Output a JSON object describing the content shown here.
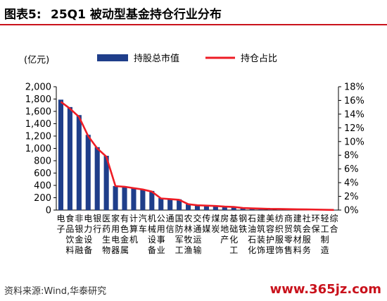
{
  "figure": {
    "number": "图表5:",
    "title": "25Q1 被动型基金持仓行业分布"
  },
  "source_note": "资料来源:Wind,华泰研究",
  "watermark": "www.365jz.com",
  "chart_data": {
    "type": "bar",
    "unit_label": "(亿元)",
    "legend": [
      "持股总市值",
      "持仓占比"
    ],
    "legend_position": "top",
    "categories": [
      "电子",
      "食品饮料",
      "非银金融",
      "电力设备",
      "银行",
      "医药生物",
      "家用电器",
      "有色金属",
      "计算机",
      "汽车",
      "机械设备",
      "公用事业",
      "通信",
      "国防军工",
      "农林牧渔",
      "交通运输",
      "传媒",
      "煤炭",
      "房地产",
      "基础化工",
      "钢铁",
      "石油石化",
      "建筑装饰",
      "美容护理",
      "纺织服饰",
      "商贸零售",
      "建筑材料",
      "社会服务",
      "环保",
      "轻工制造",
      "综合"
    ],
    "category_labels": [
      [
        "电",
        "子"
      ],
      [
        "食",
        "品",
        "饮",
        "料"
      ],
      [
        "非",
        "银",
        "金",
        "融"
      ],
      [
        "电",
        "力",
        "设",
        "备"
      ],
      [
        "银",
        "行"
      ],
      [
        "医",
        "药",
        "生",
        "物"
      ],
      [
        "家",
        "用",
        "电",
        "器"
      ],
      [
        "有",
        "色",
        "金",
        "属"
      ],
      [
        "计",
        "算",
        "机"
      ],
      [
        "汽",
        "车"
      ],
      [
        "机",
        "械",
        "设",
        "备"
      ],
      [
        "公",
        "用",
        "事",
        "业"
      ],
      [
        "通",
        "信"
      ],
      [
        "国",
        "防",
        "军",
        "工"
      ],
      [
        "农",
        "林",
        "牧",
        "渔"
      ],
      [
        "交",
        "通",
        "运",
        "输"
      ],
      [
        "传",
        "媒"
      ],
      [
        "煤",
        "炭"
      ],
      [
        "房",
        "地",
        "产"
      ],
      [
        "基",
        "础",
        "化",
        "工"
      ],
      [
        "钢",
        "铁"
      ],
      [
        "石",
        "油",
        "石",
        "化"
      ],
      [
        "建",
        "筑",
        "装",
        "饰"
      ],
      [
        "美",
        "容",
        "护",
        "理"
      ],
      [
        "纺",
        "织",
        "服",
        "饰"
      ],
      [
        "商",
        "贸",
        "零",
        "售"
      ],
      [
        "建",
        "筑",
        "材",
        "料"
      ],
      [
        "社",
        "会",
        "服",
        "务"
      ],
      [
        "环",
        "保"
      ],
      [
        "轻",
        "工",
        "制",
        "造"
      ],
      [
        "综",
        "合"
      ]
    ],
    "series": [
      {
        "name": "持股总市值",
        "axis": "left",
        "kind": "bar",
        "color": "#1f3e8a",
        "values": [
          1790,
          1670,
          1540,
          1220,
          1020,
          880,
          390,
          380,
          365,
          335,
          310,
          195,
          185,
          175,
          95,
          80,
          75,
          70,
          55,
          50,
          35,
          30,
          25,
          20,
          18,
          15,
          12,
          10,
          8,
          5,
          2
        ]
      },
      {
        "name": "持仓占比",
        "axis": "right",
        "kind": "line",
        "color": "#ee1c25",
        "values": [
          15.8,
          14.8,
          13.6,
          10.8,
          9.0,
          7.8,
          3.5,
          3.4,
          3.2,
          3.0,
          2.7,
          1.7,
          1.6,
          1.5,
          0.85,
          0.7,
          0.65,
          0.6,
          0.5,
          0.45,
          0.3,
          0.25,
          0.22,
          0.18,
          0.16,
          0.13,
          0.11,
          0.09,
          0.07,
          0.04,
          0.02
        ]
      }
    ],
    "y_left": {
      "min": 0,
      "max": 2000,
      "step": 200,
      "tick_labels": [
        "0",
        "200",
        "400",
        "600",
        "800",
        "1,000",
        "1,200",
        "1,400",
        "1,600",
        "1,800",
        "2,000"
      ]
    },
    "y_right": {
      "min": 0,
      "max": 18,
      "step": 2,
      "tick_labels": [
        "0%",
        "2%",
        "4%",
        "6%",
        "8%",
        "10%",
        "12%",
        "14%",
        "16%",
        "18%"
      ]
    },
    "grid": false
  }
}
